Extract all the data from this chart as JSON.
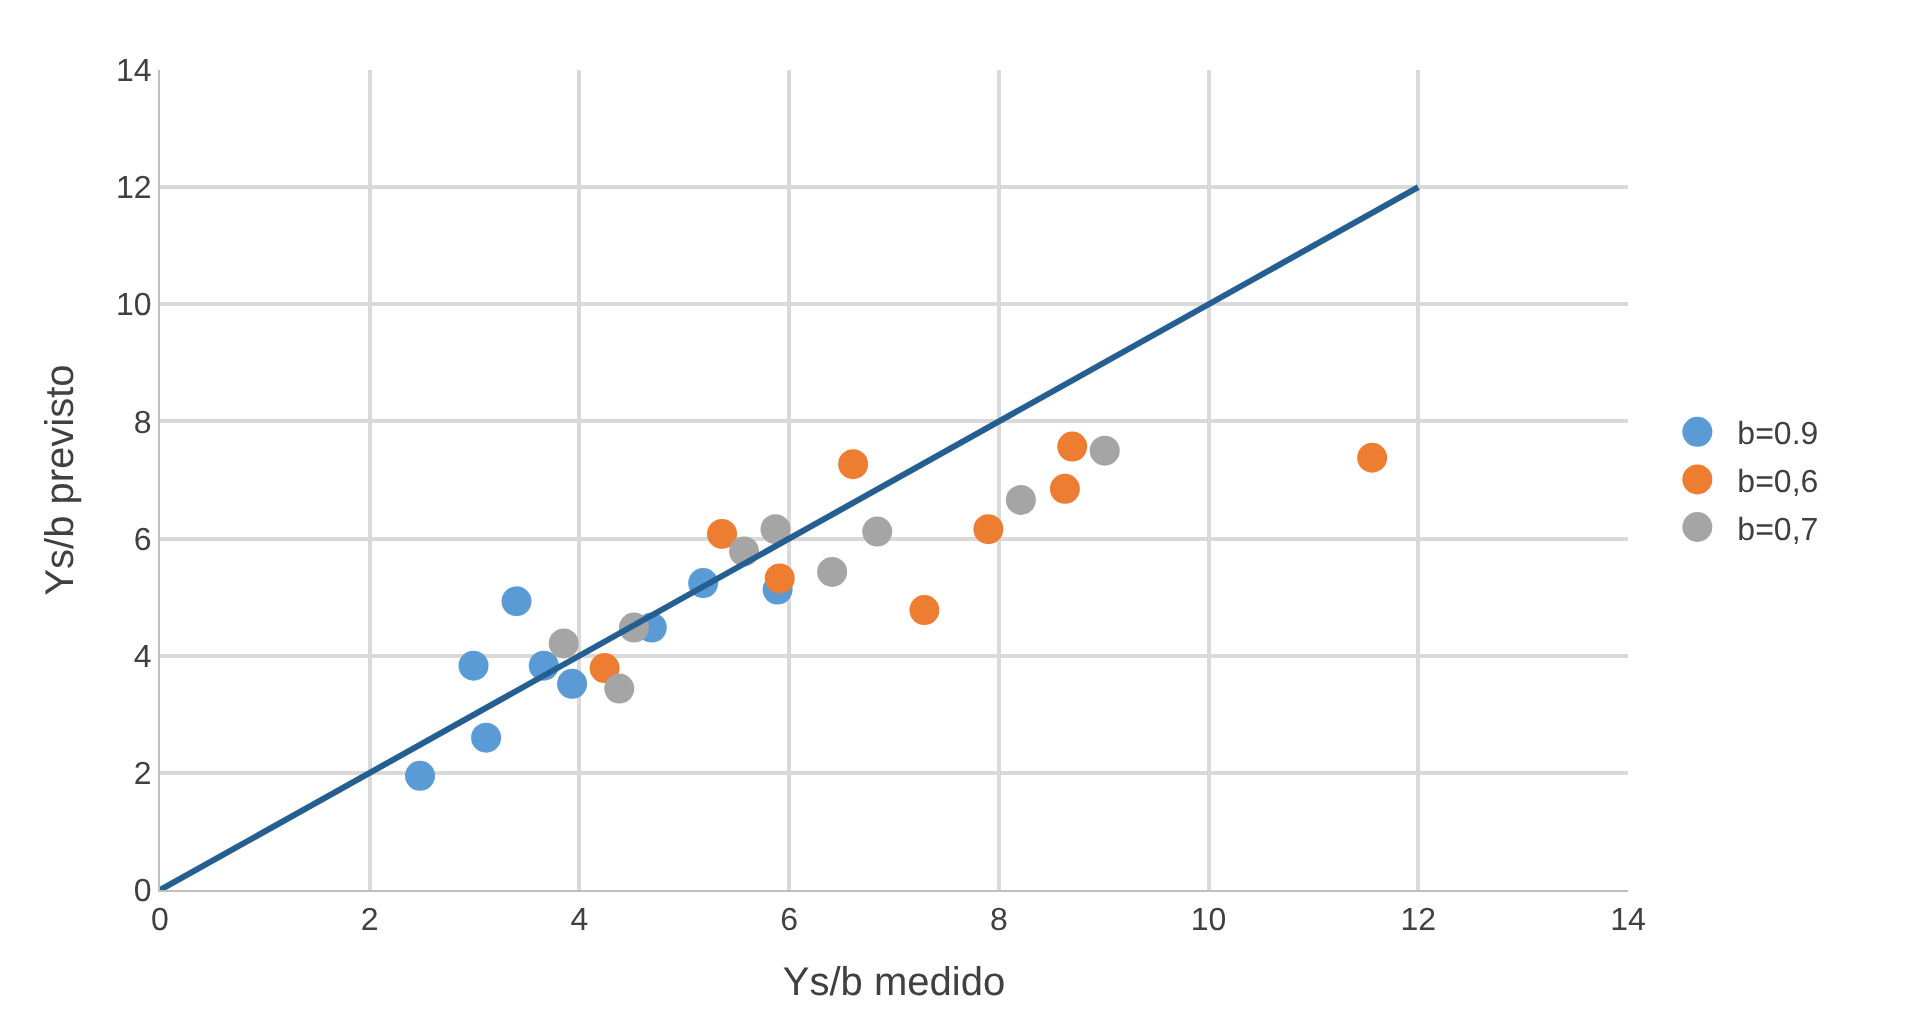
{
  "chart_data": {
    "type": "scatter",
    "xlabel": "Ys/b medido",
    "ylabel": "Ys/b previsto",
    "xlim": [
      0,
      14
    ],
    "ylim": [
      0,
      14
    ],
    "xticks": [
      0,
      2,
      4,
      6,
      8,
      10,
      12,
      14
    ],
    "yticks": [
      0,
      2,
      4,
      6,
      8,
      10,
      12,
      14
    ],
    "grid": true,
    "legend": "right",
    "marker": "circle",
    "series": [
      {
        "name": "b=0.9",
        "color": "#5b9bd5",
        "x": [
          2.48,
          2.99,
          3.11,
          3.4,
          3.66,
          3.93,
          4.69,
          5.18,
          5.89
        ],
        "values": [
          1.95,
          3.83,
          2.6,
          4.93,
          3.83,
          3.52,
          4.48,
          5.24,
          5.13
        ]
      },
      {
        "name": "b=0,6",
        "color": "#ed7d31",
        "x": [
          4.24,
          5.36,
          5.91,
          6.61,
          7.29,
          7.9,
          8.63,
          8.7,
          11.56
        ],
        "values": [
          3.79,
          6.08,
          5.32,
          7.27,
          4.78,
          6.16,
          6.85,
          7.57,
          7.38
        ]
      },
      {
        "name": "b=0,7",
        "color": "#a5a5a5",
        "x": [
          3.85,
          4.38,
          4.52,
          5.57,
          5.87,
          6.41,
          6.84,
          8.21,
          9.01
        ],
        "values": [
          4.21,
          3.44,
          4.48,
          5.78,
          6.16,
          5.43,
          6.12,
          6.66,
          7.5
        ]
      },
      {
        "type": "line",
        "color": "#255e91",
        "x": [
          0,
          12
        ],
        "values": [
          0,
          12
        ],
        "marker": "none"
      }
    ]
  }
}
